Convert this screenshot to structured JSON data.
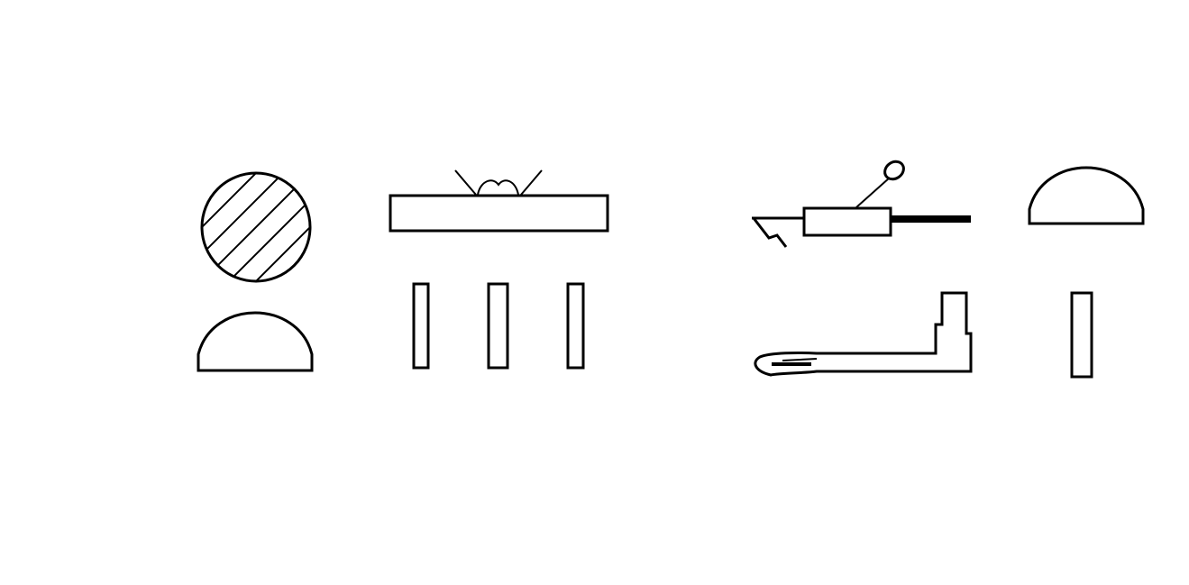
{
  "colors": {
    "background": "#ffffff",
    "ink": "#000000"
  },
  "glyphs": [
    {
      "name": "hatched-disc-icon"
    },
    {
      "name": "semicircle-loaf-icon"
    },
    {
      "name": "hall-plan-icon"
    },
    {
      "name": "stroke-icon"
    },
    {
      "name": "stroke-icon"
    },
    {
      "name": "stroke-icon"
    },
    {
      "name": "harpoon-icon"
    },
    {
      "name": "forearm-icon"
    },
    {
      "name": "semicircle-loaf-icon"
    },
    {
      "name": "stroke-icon"
    }
  ]
}
